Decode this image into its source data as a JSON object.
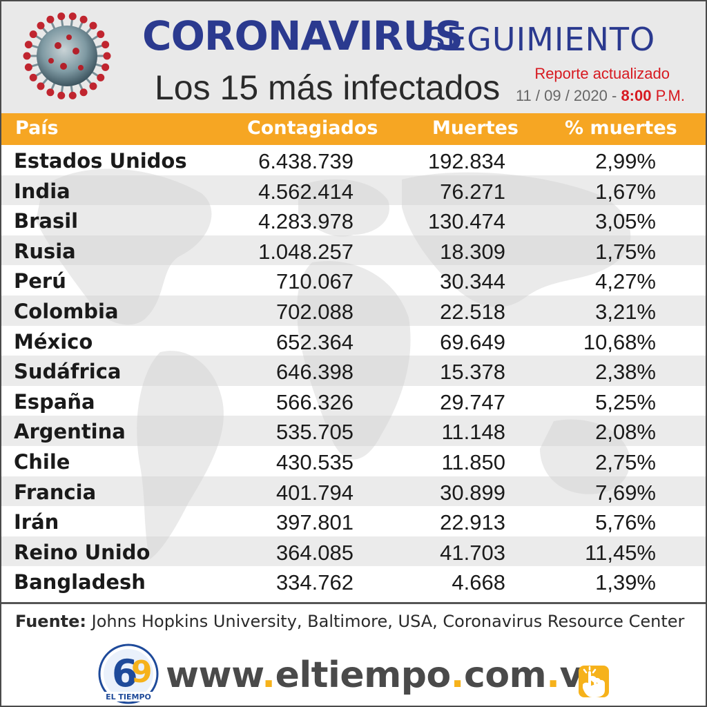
{
  "header": {
    "title_main": "CORONAVIRUS",
    "title_secondary": "SEGUIMIENTO",
    "subtitle": "Los 15 más infectados",
    "report_label": "Reporte actualizado",
    "report_date": "11 / 09 / 2020 -",
    "report_time": "8:00",
    "report_ampm": "P.M."
  },
  "table": {
    "headers": [
      "País",
      "Contagiados",
      "Muertes",
      "% muertes"
    ],
    "rows": [
      {
        "country": "Estados Unidos",
        "cases": "6.438.739",
        "deaths": "192.834",
        "pct": "2,99%"
      },
      {
        "country": "India",
        "cases": "4.562.414",
        "deaths": "76.271",
        "pct": "1,67%"
      },
      {
        "country": "Brasil",
        "cases": "4.283.978",
        "deaths": "130.474",
        "pct": "3,05%"
      },
      {
        "country": "Rusia",
        "cases": "1.048.257",
        "deaths": "18.309",
        "pct": "1,75%"
      },
      {
        "country": "Perú",
        "cases": "710.067",
        "deaths": "30.344",
        "pct": "4,27%"
      },
      {
        "country": "Colombia",
        "cases": "702.088",
        "deaths": "22.518",
        "pct": "3,21%"
      },
      {
        "country": "México",
        "cases": "652.364",
        "deaths": "69.649",
        "pct": "10,68%"
      },
      {
        "country": "Sudáfrica",
        "cases": "646.398",
        "deaths": "15.378",
        "pct": "2,38%"
      },
      {
        "country": "España",
        "cases": "566.326",
        "deaths": "29.747",
        "pct": "5,25%"
      },
      {
        "country": "Argentina",
        "cases": "535.705",
        "deaths": "11.148",
        "pct": "2,08%"
      },
      {
        "country": "Chile",
        "cases": "430.535",
        "deaths": "11.850",
        "pct": "2,75%"
      },
      {
        "country": "Francia",
        "cases": "401.794",
        "deaths": "30.899",
        "pct": "7,69%"
      },
      {
        "country": "Irán",
        "cases": "397.801",
        "deaths": "22.913",
        "pct": "5,76%"
      },
      {
        "country": "Reino Unido",
        "cases": "364.085",
        "deaths": "41.703",
        "pct": "11,45%"
      },
      {
        "country": "Bangladesh",
        "cases": "334.762",
        "deaths": "4.668",
        "pct": "1,39%"
      }
    ]
  },
  "footer": {
    "source_label": "Fuente:",
    "source_text": "Johns Hopkins University, Baltimore, USA, Coronavirus Resource Center",
    "logo_text": "EL TIEMPO",
    "url_parts": [
      "www",
      ".",
      "eltiempo",
      ".",
      "com",
      ".",
      "ve"
    ]
  },
  "colors": {
    "title_blue": "#2b3a8f",
    "header_orange": "#f6a623",
    "accent_red": "#d71920",
    "url_dot_yellow": "#f6b21b"
  },
  "icons": [
    "coronavirus-icon",
    "el-tiempo-logo",
    "click-hand-icon"
  ]
}
